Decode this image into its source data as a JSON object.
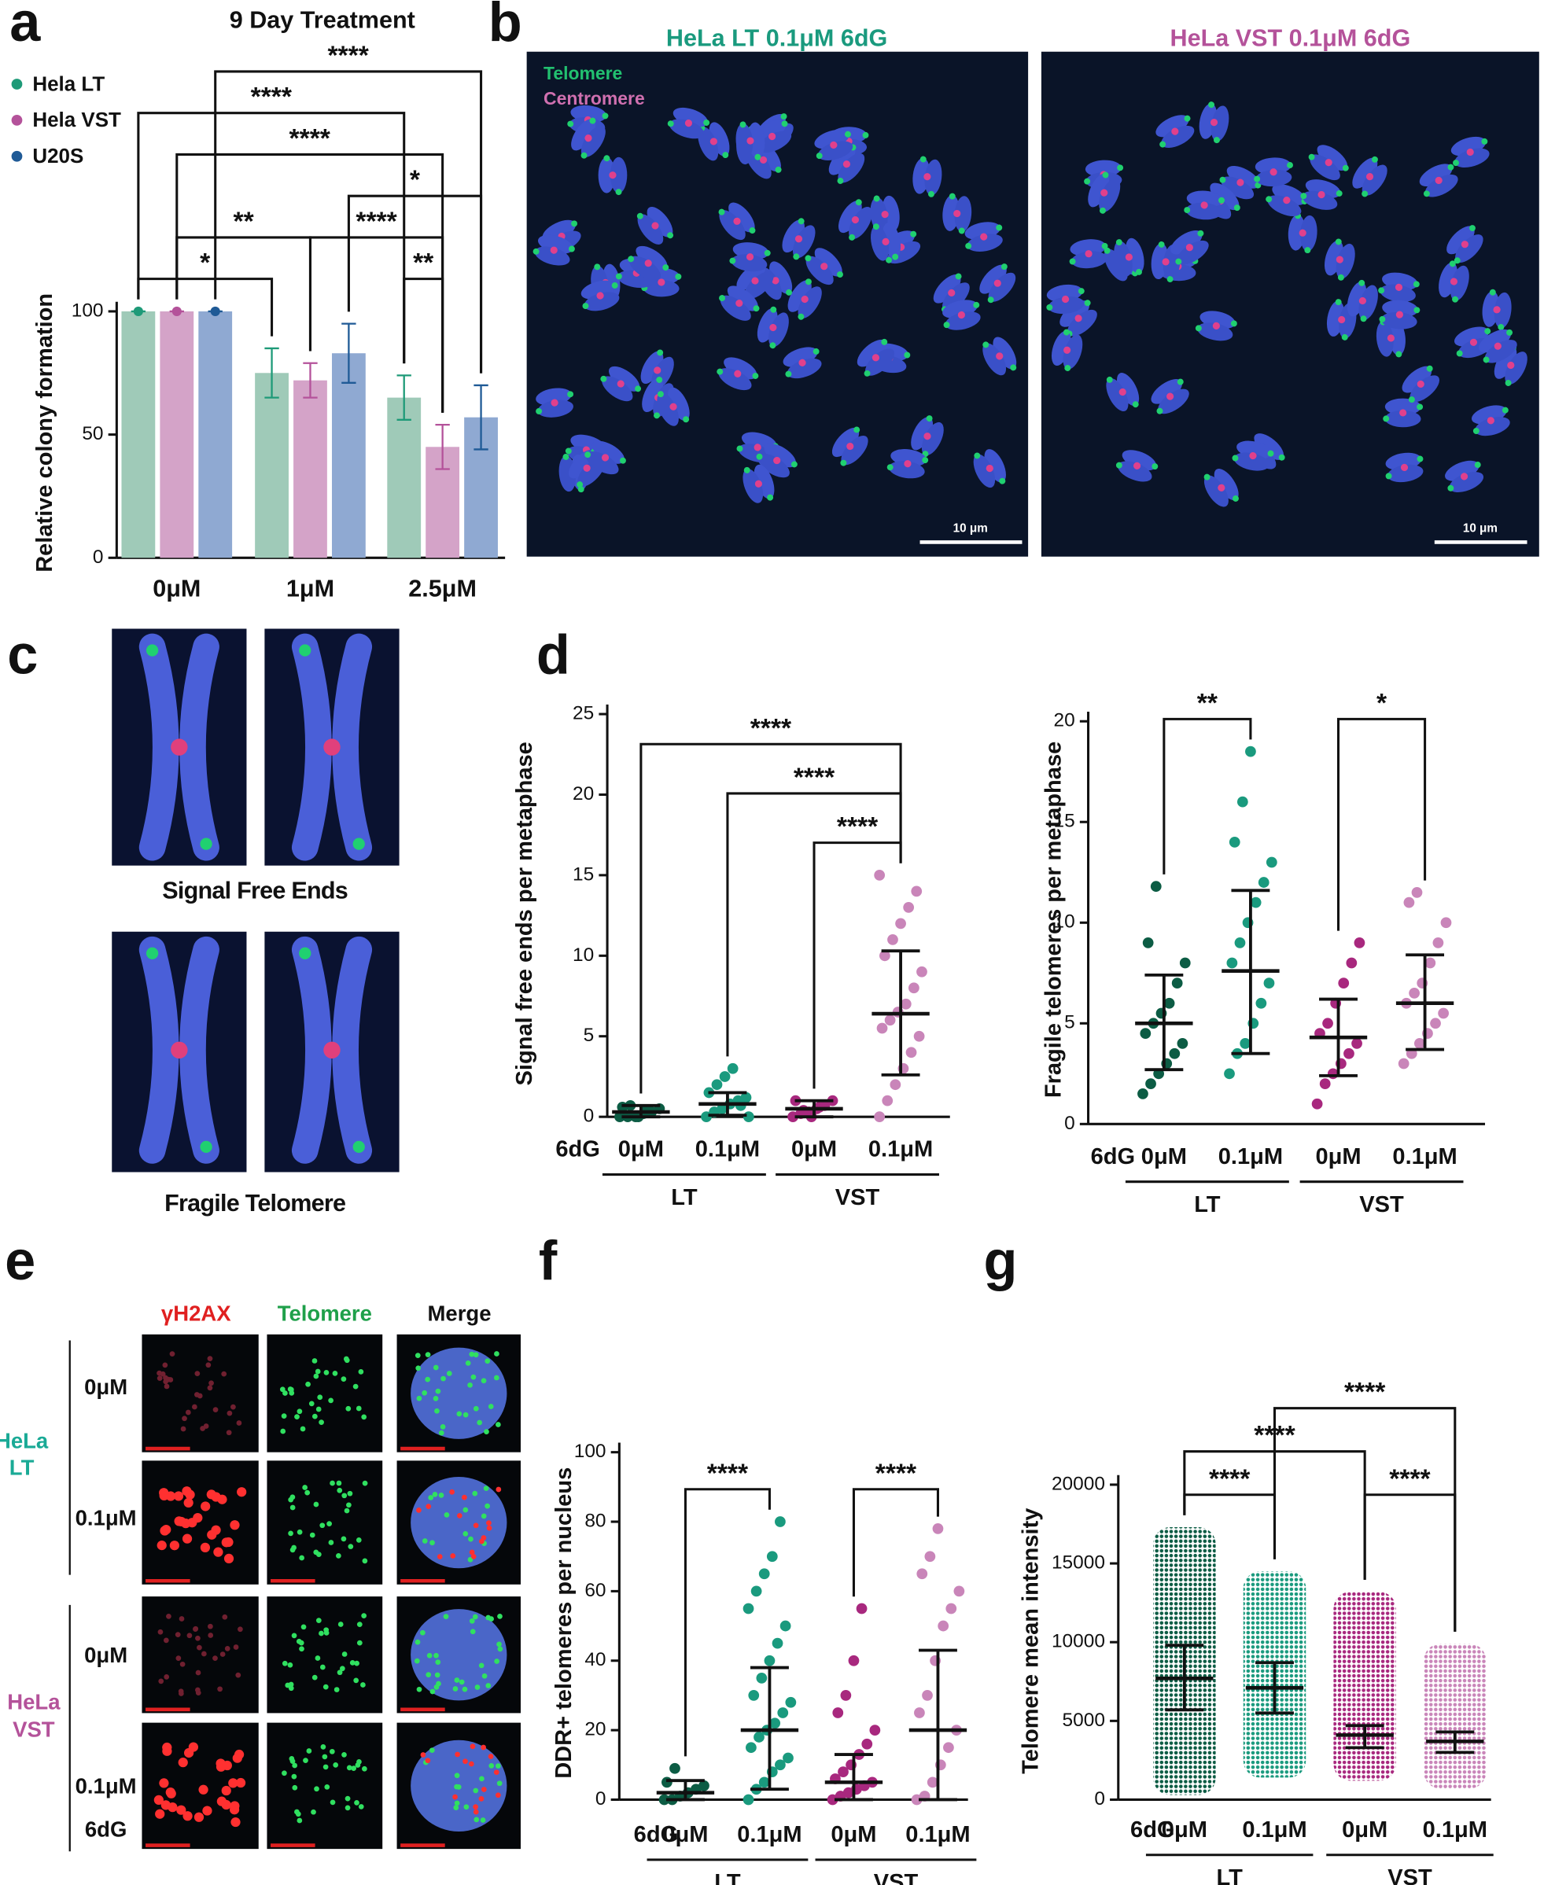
{
  "panel_labels": [
    "a",
    "b",
    "c",
    "d",
    "e",
    "f",
    "g"
  ],
  "micrographs": {
    "b": {
      "titles": [
        "HeLa LT 0.1μM 6dG",
        "HeLa VST 0.1μM 6dG"
      ],
      "legend": [
        "Telomere",
        "Centromere"
      ],
      "scale_bar": "10 μm"
    },
    "c": {
      "captions": [
        "Signal Free Ends",
        "Fragile Telomere"
      ]
    },
    "e": {
      "columns": [
        "γH2AX",
        "Telomere",
        "Merge"
      ],
      "groups": [
        {
          "label": [
            "HeLa",
            "LT"
          ],
          "rows": [
            "0μM",
            "0.1μM"
          ]
        },
        {
          "label": [
            "HeLa",
            "VST"
          ],
          "rows": [
            "0μM",
            "0.1μM"
          ]
        }
      ],
      "footer": "6dG"
    }
  },
  "chart_data": [
    {
      "type": "bar",
      "title": "9 Day Treatment",
      "y_label": "Relative colony formation",
      "categories": [
        "0μM",
        "1μM",
        "2.5μM"
      ],
      "series": [
        {
          "name": "Hela LT",
          "color": "#1e9a78",
          "fill": "#9fcab8",
          "values": [
            100,
            75,
            65
          ],
          "errors": [
            0,
            10,
            9
          ]
        },
        {
          "name": "Hela VST",
          "color": "#b4529a",
          "fill": "#d4a3c8",
          "values": [
            100,
            72,
            45
          ],
          "errors": [
            0,
            7,
            9
          ]
        },
        {
          "name": "U20S",
          "color": "#1f5a96",
          "fill": "#8fa9d2",
          "values": [
            100,
            83,
            57
          ],
          "errors": [
            0,
            12,
            13
          ]
        }
      ],
      "ylim": [
        0,
        100
      ],
      "yticks": [
        0,
        50,
        100
      ],
      "legend": "top-left",
      "brackets": [
        {
          "label": "*",
          "from": [
            0,
            0
          ],
          "to": [
            1,
            0
          ]
        },
        {
          "label": "**",
          "from": [
            2,
            0
          ],
          "to": [
            2,
            1
          ]
        },
        {
          "label": "**",
          "from": [
            0,
            1
          ],
          "to": [
            1,
            1
          ]
        },
        {
          "label": "****",
          "from": [
            1,
            1
          ],
          "to": [
            2,
            1
          ]
        },
        {
          "label": "*",
          "from": [
            1,
            2
          ],
          "to": [
            2,
            2
          ]
        },
        {
          "label": "****",
          "from": [
            0,
            1
          ],
          "to": [
            2,
            1
          ]
        },
        {
          "label": "****",
          "from": [
            0,
            0
          ],
          "to": [
            2,
            0
          ]
        },
        {
          "label": "****",
          "from": [
            0,
            2
          ],
          "to": [
            2,
            2
          ]
        }
      ]
    },
    {
      "type": "strip",
      "y_label": "Signal free ends per metaphase",
      "x_prefix": "6dG",
      "categories": [
        "0μM",
        "0.1μM",
        "0μM",
        "0.1μM"
      ],
      "groups": [
        {
          "label": "LT",
          "span": [
            0,
            1
          ]
        },
        {
          "label": "VST",
          "span": [
            2,
            3
          ]
        }
      ],
      "colors": [
        "#0c5c44",
        "#1a9a7e",
        "#a8287e",
        "#c985b9"
      ],
      "points": [
        [
          0,
          0,
          0,
          0.2,
          0.3,
          0.5,
          0.6,
          0.7,
          0,
          0.4
        ],
        [
          0,
          0.3,
          0.5,
          0.8,
          1,
          1.2,
          1.5,
          2,
          2.5,
          3,
          0.7,
          0
        ],
        [
          0,
          0.2,
          0.3,
          0.5,
          0.7,
          1,
          1,
          0.4,
          0,
          0.6
        ],
        [
          0,
          1,
          2,
          3,
          4,
          5,
          5.5,
          6,
          6.5,
          7,
          8,
          9,
          10,
          11,
          12,
          13,
          14,
          15
        ]
      ],
      "mean": [
        0.3,
        0.8,
        0.5,
        6.4
      ],
      "err_low": [
        0,
        0.1,
        0,
        2.6
      ],
      "err_high": [
        0.7,
        1.5,
        1,
        10.3
      ],
      "ylim": [
        0,
        25
      ],
      "yticks": [
        0,
        5,
        10,
        15,
        20,
        25
      ],
      "brackets": [
        {
          "label": "****",
          "from": 2,
          "to": 3
        },
        {
          "label": "****",
          "from": 1,
          "to": 3
        },
        {
          "label": "****",
          "from": 0,
          "to": 3
        }
      ]
    },
    {
      "type": "strip",
      "y_label": "Fragile telomeres per metaphase",
      "x_prefix": "6dG",
      "categories": [
        "0μM",
        "0.1μM",
        "0μM",
        "0.1μM"
      ],
      "groups": [
        {
          "label": "LT",
          "span": [
            0,
            1
          ]
        },
        {
          "label": "VST",
          "span": [
            2,
            3
          ]
        }
      ],
      "colors": [
        "#0c5c44",
        "#1a9a7e",
        "#a8287e",
        "#c985b9"
      ],
      "points": [
        [
          1.5,
          2,
          2.5,
          3,
          3.5,
          4,
          4.5,
          5,
          5.5,
          6,
          7,
          8,
          9,
          11.8
        ],
        [
          2.5,
          3.5,
          4,
          5,
          6,
          7,
          8,
          9,
          10,
          11,
          12,
          13,
          14,
          16,
          18.5
        ],
        [
          1,
          2,
          2.5,
          3,
          3.5,
          4,
          4.5,
          5,
          6,
          7,
          8,
          9
        ],
        [
          3,
          3.5,
          4,
          4.5,
          5,
          5.5,
          6,
          6.5,
          7,
          8,
          9,
          10,
          11,
          11.5
        ]
      ],
      "mean": [
        5.0,
        7.6,
        4.3,
        6.0
      ],
      "err_low": [
        2.7,
        3.5,
        2.4,
        3.7
      ],
      "err_high": [
        7.4,
        11.6,
        6.2,
        8.4
      ],
      "ylim": [
        0,
        20
      ],
      "yticks": [
        0,
        5,
        10,
        15,
        20
      ],
      "brackets": [
        {
          "label": "**",
          "from": 0,
          "to": 1
        },
        {
          "label": "*",
          "from": 2,
          "to": 3
        }
      ]
    },
    {
      "type": "strip",
      "y_label": "DDR+ telomeres per nucleus",
      "x_prefix": "6dG",
      "categories": [
        "0μM",
        "0.1μM",
        "0μM",
        "0.1μM"
      ],
      "groups": [
        {
          "label": "LT",
          "span": [
            0,
            1
          ]
        },
        {
          "label": "VST",
          "span": [
            2,
            3
          ]
        }
      ],
      "colors": [
        "#0c5c44",
        "#1a9a7e",
        "#a8287e",
        "#c985b9"
      ],
      "points": [
        [
          0,
          0,
          1,
          2,
          3,
          4,
          5,
          9
        ],
        [
          0,
          3,
          5,
          8,
          10,
          12,
          15,
          18,
          20,
          22,
          25,
          28,
          30,
          35,
          40,
          45,
          50,
          55,
          60,
          65,
          70,
          80
        ],
        [
          0,
          1,
          2,
          3,
          4,
          5,
          6,
          8,
          10,
          13,
          16,
          20,
          25,
          30,
          40,
          55
        ],
        [
          0,
          1,
          5,
          10,
          15,
          20,
          25,
          30,
          40,
          50,
          55,
          60,
          65,
          70,
          78
        ]
      ],
      "mean": [
        2,
        20,
        5,
        20
      ],
      "err_low": [
        0,
        3,
        0,
        0
      ],
      "err_high": [
        5.5,
        38,
        13,
        43
      ],
      "ylim": [
        0,
        100
      ],
      "yticks": [
        0,
        20,
        40,
        60,
        80,
        100
      ],
      "brackets": [
        {
          "label": "****",
          "from": 0,
          "to": 1
        },
        {
          "label": "****",
          "from": 2,
          "to": 3
        }
      ]
    },
    {
      "type": "strip",
      "y_label": "Telomere mean intensity",
      "x_prefix": "6dG",
      "categories": [
        "0μM",
        "0.1μM",
        "0μM",
        "0.1μM"
      ],
      "groups": [
        {
          "label": "LT",
          "span": [
            0,
            1
          ]
        },
        {
          "label": "VST",
          "span": [
            2,
            3
          ]
        }
      ],
      "colors": [
        "#0c5c44",
        "#1a9a7e",
        "#a8287e",
        "#c985b9"
      ],
      "min": [
        300,
        1400,
        1200,
        700
      ],
      "max": [
        17300,
        14500,
        13200,
        9900
      ],
      "mean": [
        7700,
        7100,
        4100,
        3700
      ],
      "err_low": [
        5700,
        5500,
        3300,
        3000
      ],
      "err_high": [
        9800,
        8700,
        4700,
        4300
      ],
      "ylim": [
        0,
        20000
      ],
      "yticks": [
        0,
        5000,
        10000,
        15000,
        20000
      ],
      "brackets": [
        {
          "label": "****",
          "from": 0,
          "to": 1
        },
        {
          "label": "****",
          "from": 2,
          "to": 3
        },
        {
          "label": "****",
          "from": 0,
          "to": 2
        },
        {
          "label": "****",
          "from": 1,
          "to": 3
        }
      ]
    }
  ]
}
